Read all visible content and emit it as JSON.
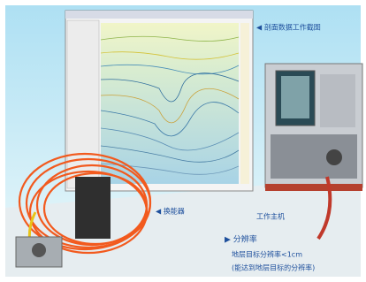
{
  "labels": {
    "screen": "◀ 剖面数据工作截图",
    "transducer": "◀ 换能器",
    "host": "工作主机",
    "resolution_title": "▶ 分辨率",
    "resolution_line1": "地层目标分辨率<1cm",
    "resolution_line2": "(能达到地层目标的分辨率)"
  }
}
